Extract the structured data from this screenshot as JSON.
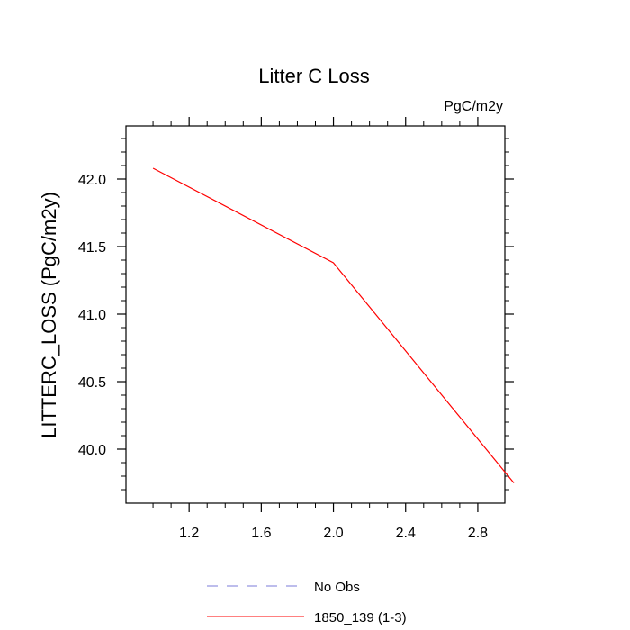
{
  "chart_data": {
    "type": "line",
    "title": "Litter C Loss",
    "units_label": "PgC/m2y",
    "xlabel": "",
    "ylabel": "LITTERC_LOSS  (PgC/m2y)",
    "xlim": [
      0.85,
      2.95
    ],
    "ylim": [
      39.8,
      41.6
    ],
    "x_ticks": [
      1.2,
      1.6,
      2.0,
      2.4,
      2.8
    ],
    "x_tick_labels": [
      "1.2",
      "1.6",
      "2.0",
      "2.4",
      "2.8"
    ],
    "y_ticks": [
      39.8,
      40.0,
      40.2,
      40.4,
      40.6,
      40.8,
      41.0,
      41.2,
      41.4,
      41.6
    ],
    "y_major_ticks": [
      40.0,
      40.5,
      41.0,
      41.5,
      42.0
    ],
    "y_tick_labels": [
      "40.0",
      "40.5",
      "41.0",
      "41.5",
      "42.0"
    ],
    "grid": false,
    "legend_placement": "bottom-center",
    "series": [
      {
        "name": "No Obs",
        "x": [],
        "y": [],
        "color": "#7b7bd8",
        "dash": "dashed"
      },
      {
        "name": "1850_139 (1-3)",
        "x": [
          1.0,
          2.0,
          3.0
        ],
        "y": [
          42.08,
          41.38,
          39.75
        ],
        "color": "#ff0000",
        "dash": "solid"
      }
    ]
  }
}
